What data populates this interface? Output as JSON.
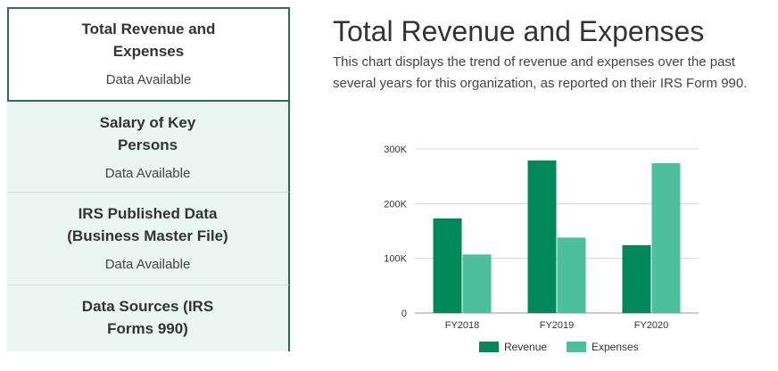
{
  "sidebar": {
    "items": [
      {
        "title": "Total Revenue and Expenses",
        "status": "Data Available"
      },
      {
        "title": "Salary of Key Persons",
        "status": "Data Available"
      },
      {
        "title": "IRS Published Data (Business Master File)",
        "status": "Data Available"
      },
      {
        "title": "Data Sources (IRS Forms 990)",
        "status": ""
      }
    ]
  },
  "main": {
    "title": "Total Revenue and Expenses",
    "description": "This chart displays the trend of revenue and expenses over the past several years for this organization, as reported on their IRS Form 990."
  },
  "chart_data": {
    "type": "bar",
    "categories": [
      "FY2018",
      "FY2019",
      "FY2020"
    ],
    "series": [
      {
        "name": "Revenue",
        "values": [
          173000,
          279000,
          124000
        ],
        "color": "#00875a"
      },
      {
        "name": "Expenses",
        "values": [
          107000,
          138000,
          274000
        ],
        "color": "#4cbf9c"
      }
    ],
    "yticks": [
      {
        "value": 0,
        "label": "0"
      },
      {
        "value": 100000,
        "label": "100K"
      },
      {
        "value": 200000,
        "label": "200K"
      },
      {
        "value": 300000,
        "label": "300K"
      }
    ],
    "ylim": [
      0,
      300000
    ],
    "grid": true,
    "legend": "bottom",
    "title": "",
    "xlabel": "",
    "ylabel": ""
  }
}
